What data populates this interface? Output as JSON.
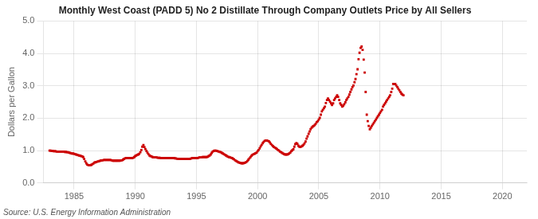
{
  "chart_data": {
    "type": "scatter",
    "title": "Monthly West Coast (PADD 5) No 2 Distillate Through Company Outlets Price by All Sellers",
    "y_label": "Dollars per Gallon",
    "annotations": [
      "Source: U.S. Energy Information Administration"
    ],
    "color": "#cc0000",
    "marker": "square",
    "grid": true,
    "xlim": [
      1982.5,
      2022
    ],
    "ylim": [
      0.0,
      5.0
    ],
    "xticks": [
      1985,
      1990,
      1995,
      2000,
      2005,
      2010,
      2015,
      2020
    ],
    "yticks": [
      {
        "value": 0.0,
        "label": "0.0"
      },
      {
        "value": 1.0,
        "label": "1.0"
      },
      {
        "value": 2.0,
        "label": "2.0"
      },
      {
        "value": 3.0,
        "label": "3.0"
      },
      {
        "value": 4.0,
        "label": "4.0"
      },
      {
        "value": 5.0,
        "label": "5.0"
      }
    ],
    "x": [
      1983.0,
      1983.08,
      1983.17,
      1983.25,
      1983.33,
      1983.42,
      1983.5,
      1983.58,
      1983.67,
      1983.75,
      1983.83,
      1983.92,
      1984.0,
      1984.08,
      1984.17,
      1984.25,
      1984.33,
      1984.42,
      1984.5,
      1984.58,
      1984.67,
      1984.75,
      1984.83,
      1984.92,
      1985.0,
      1985.08,
      1985.17,
      1985.25,
      1985.33,
      1985.42,
      1985.5,
      1985.58,
      1985.67,
      1985.75,
      1985.83,
      1985.92,
      1986.0,
      1986.08,
      1986.17,
      1986.25,
      1986.33,
      1986.42,
      1986.5,
      1986.58,
      1986.67,
      1986.75,
      1986.83,
      1986.92,
      1987.0,
      1987.08,
      1987.17,
      1987.25,
      1987.33,
      1987.42,
      1987.5,
      1987.58,
      1987.67,
      1987.75,
      1987.83,
      1987.92,
      1988.0,
      1988.08,
      1988.17,
      1988.25,
      1988.33,
      1988.42,
      1988.5,
      1988.58,
      1988.67,
      1988.75,
      1988.83,
      1988.92,
      1989.0,
      1989.08,
      1989.17,
      1989.25,
      1989.33,
      1989.42,
      1989.5,
      1989.58,
      1989.67,
      1989.75,
      1989.83,
      1989.92,
      1990.0,
      1990.08,
      1990.17,
      1990.25,
      1990.33,
      1990.42,
      1990.5,
      1990.58,
      1990.67,
      1990.75,
      1990.83,
      1990.92,
      1991.0,
      1991.08,
      1991.17,
      1991.25,
      1991.33,
      1991.42,
      1991.5,
      1991.58,
      1991.67,
      1991.75,
      1991.83,
      1991.92,
      1992.0,
      1992.08,
      1992.17,
      1992.25,
      1992.33,
      1992.42,
      1992.5,
      1992.58,
      1992.67,
      1992.75,
      1992.83,
      1992.92,
      1993.0,
      1993.08,
      1993.17,
      1993.25,
      1993.33,
      1993.42,
      1993.5,
      1993.58,
      1993.67,
      1993.75,
      1993.83,
      1993.92,
      1994.0,
      1994.08,
      1994.17,
      1994.25,
      1994.33,
      1994.42,
      1994.5,
      1994.58,
      1994.67,
      1994.75,
      1994.83,
      1994.92,
      1995.0,
      1995.08,
      1995.17,
      1995.25,
      1995.33,
      1995.42,
      1995.5,
      1995.58,
      1995.67,
      1995.75,
      1995.83,
      1995.92,
      1996.0,
      1996.08,
      1996.17,
      1996.25,
      1996.33,
      1996.42,
      1996.5,
      1996.58,
      1996.67,
      1996.75,
      1996.83,
      1996.92,
      1997.0,
      1997.08,
      1997.17,
      1997.25,
      1997.33,
      1997.42,
      1997.5,
      1997.58,
      1997.67,
      1997.75,
      1997.83,
      1997.92,
      1998.0,
      1998.08,
      1998.17,
      1998.25,
      1998.33,
      1998.42,
      1998.5,
      1998.58,
      1998.67,
      1998.75,
      1998.83,
      1998.92,
      1999.0,
      1999.08,
      1999.17,
      1999.25,
      1999.33,
      1999.42,
      1999.5,
      1999.58,
      1999.67,
      1999.75,
      1999.83,
      1999.92,
      2000.0,
      2000.08,
      2000.17,
      2000.25,
      2000.33,
      2000.42,
      2000.5,
      2000.58,
      2000.67,
      2000.75,
      2000.83,
      2000.92,
      2001.0,
      2001.08,
      2001.17,
      2001.25,
      2001.33,
      2001.42,
      2001.5,
      2001.58,
      2001.67,
      2001.75,
      2001.83,
      2001.92,
      2002.0,
      2002.08,
      2002.17,
      2002.25,
      2002.33,
      2002.42,
      2002.5,
      2002.58,
      2002.67,
      2002.75,
      2002.83,
      2002.92,
      2003.0,
      2003.08,
      2003.17,
      2003.25,
      2003.33,
      2003.42,
      2003.5,
      2003.58,
      2003.67,
      2003.75,
      2003.83,
      2003.92,
      2004.0,
      2004.08,
      2004.17,
      2004.25,
      2004.33,
      2004.42,
      2004.5,
      2004.58,
      2004.67,
      2004.75,
      2004.83,
      2004.92,
      2005.0,
      2005.08,
      2005.17,
      2005.25,
      2005.33,
      2005.42,
      2005.5,
      2005.58,
      2005.67,
      2005.75,
      2005.83,
      2005.92,
      2006.0,
      2006.08,
      2006.17,
      2006.25,
      2006.33,
      2006.42,
      2006.5,
      2006.58,
      2006.67,
      2006.75,
      2006.83,
      2006.92,
      2007.0,
      2007.08,
      2007.17,
      2007.25,
      2007.33,
      2007.42,
      2007.5,
      2007.58,
      2007.67,
      2007.75,
      2007.83,
      2007.92,
      2008.0,
      2008.08,
      2008.17,
      2008.25,
      2008.33,
      2008.42,
      2008.5,
      2008.58,
      2008.67,
      2008.75,
      2008.83,
      2008.92,
      2009.0,
      2009.08,
      2009.17,
      2009.25,
      2009.33,
      2009.42,
      2009.5,
      2009.58,
      2009.67,
      2009.75,
      2009.83,
      2009.92,
      2010.0,
      2010.08,
      2010.17,
      2010.25,
      2010.33,
      2010.42,
      2010.5,
      2010.58,
      2010.67,
      2010.75,
      2010.83,
      2010.92,
      2011.0,
      2011.08,
      2011.17,
      2011.25,
      2011.33,
      2011.42,
      2011.5,
      2011.58,
      2011.67,
      2011.75,
      2011.83,
      2011.92
    ],
    "values": [
      1.0,
      1.0,
      0.99,
      0.99,
      0.98,
      0.98,
      0.98,
      0.97,
      0.97,
      0.97,
      0.97,
      0.97,
      0.97,
      0.97,
      0.97,
      0.96,
      0.96,
      0.95,
      0.95,
      0.94,
      0.93,
      0.92,
      0.91,
      0.91,
      0.9,
      0.89,
      0.88,
      0.87,
      0.86,
      0.85,
      0.84,
      0.83,
      0.82,
      0.8,
      0.74,
      0.67,
      0.61,
      0.57,
      0.55,
      0.55,
      0.55,
      0.56,
      0.58,
      0.6,
      0.63,
      0.64,
      0.65,
      0.66,
      0.67,
      0.68,
      0.69,
      0.7,
      0.7,
      0.71,
      0.71,
      0.71,
      0.71,
      0.71,
      0.71,
      0.71,
      0.71,
      0.7,
      0.69,
      0.69,
      0.69,
      0.69,
      0.69,
      0.69,
      0.69,
      0.69,
      0.7,
      0.7,
      0.72,
      0.74,
      0.76,
      0.77,
      0.77,
      0.77,
      0.77,
      0.77,
      0.77,
      0.77,
      0.78,
      0.8,
      0.83,
      0.85,
      0.87,
      0.88,
      0.9,
      0.95,
      1.02,
      1.12,
      1.17,
      1.11,
      1.05,
      0.99,
      0.94,
      0.89,
      0.85,
      0.83,
      0.82,
      0.8,
      0.79,
      0.79,
      0.79,
      0.79,
      0.78,
      0.78,
      0.78,
      0.77,
      0.77,
      0.77,
      0.77,
      0.77,
      0.77,
      0.77,
      0.77,
      0.77,
      0.77,
      0.77,
      0.77,
      0.77,
      0.77,
      0.76,
      0.76,
      0.75,
      0.75,
      0.74,
      0.74,
      0.74,
      0.74,
      0.74,
      0.74,
      0.74,
      0.74,
      0.74,
      0.74,
      0.74,
      0.75,
      0.76,
      0.77,
      0.77,
      0.77,
      0.77,
      0.77,
      0.77,
      0.78,
      0.79,
      0.79,
      0.79,
      0.8,
      0.8,
      0.8,
      0.8,
      0.8,
      0.81,
      0.83,
      0.85,
      0.88,
      0.93,
      0.97,
      0.99,
      1.0,
      1.0,
      0.99,
      0.98,
      0.97,
      0.96,
      0.95,
      0.93,
      0.91,
      0.89,
      0.87,
      0.85,
      0.83,
      0.81,
      0.8,
      0.79,
      0.78,
      0.77,
      0.75,
      0.73,
      0.7,
      0.68,
      0.66,
      0.64,
      0.63,
      0.62,
      0.61,
      0.61,
      0.61,
      0.62,
      0.63,
      0.65,
      0.68,
      0.72,
      0.76,
      0.8,
      0.84,
      0.87,
      0.89,
      0.9,
      0.92,
      0.94,
      0.98,
      1.02,
      1.07,
      1.13,
      1.18,
      1.23,
      1.27,
      1.3,
      1.31,
      1.31,
      1.3,
      1.29,
      1.25,
      1.21,
      1.17,
      1.14,
      1.11,
      1.09,
      1.07,
      1.05,
      1.02,
      1.0,
      0.97,
      0.95,
      0.93,
      0.91,
      0.89,
      0.88,
      0.88,
      0.88,
      0.89,
      0.91,
      0.94,
      0.98,
      1.01,
      1.04,
      1.12,
      1.2,
      1.23,
      1.21,
      1.15,
      1.12,
      1.11,
      1.13,
      1.15,
      1.18,
      1.22,
      1.28,
      1.37,
      1.44,
      1.52,
      1.59,
      1.66,
      1.71,
      1.74,
      1.76,
      1.79,
      1.83,
      1.88,
      1.91,
      1.96,
      2.01,
      2.11,
      2.21,
      2.26,
      2.31,
      2.36,
      2.47,
      2.56,
      2.61,
      2.56,
      2.51,
      2.46,
      2.41,
      2.46,
      2.56,
      2.61,
      2.66,
      2.71,
      2.66,
      2.56,
      2.46,
      2.41,
      2.36,
      2.39,
      2.43,
      2.49,
      2.56,
      2.61,
      2.66,
      2.73,
      2.81,
      2.89,
      2.96,
      3.01,
      3.11,
      3.21,
      3.36,
      3.51,
      3.82,
      4.02,
      4.17,
      4.21,
      4.11,
      3.81,
      3.41,
      2.81,
      2.11,
      1.91,
      1.76,
      1.66,
      1.71,
      1.76,
      1.81,
      1.86,
      1.91,
      1.96,
      2.01,
      2.06,
      2.11,
      2.16,
      2.21,
      2.26,
      2.36,
      2.41,
      2.46,
      2.51,
      2.56,
      2.61,
      2.66,
      2.71,
      2.81,
      2.91,
      3.06,
      3.06,
      3.06,
      3.01,
      2.96,
      2.91,
      2.86,
      2.81,
      2.76,
      2.73,
      2.71
    ]
  }
}
